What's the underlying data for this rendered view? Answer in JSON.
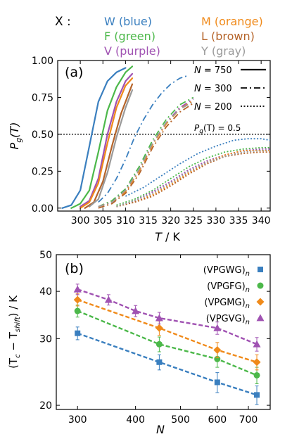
{
  "color_key": {
    "prefix": "X :",
    "items": [
      {
        "text": "W (blue)",
        "color": "#3a7fbf"
      },
      {
        "text": "M (orange)",
        "color": "#f08a1a"
      },
      {
        "text": "F (green)",
        "color": "#4cb84a"
      },
      {
        "text": "L (brown)",
        "color": "#b5642a"
      },
      {
        "text": "V (purple)",
        "color": "#a052b2"
      },
      {
        "text": "Y (gray)",
        "color": "#9a9a9a"
      }
    ]
  },
  "chart_data": [
    {
      "panel_label": "(a)",
      "type": "line",
      "xlabel_main": "T",
      "xlabel_unit": " / K",
      "ylabel_main": "P",
      "ylabel_sub": "g",
      "ylabel_arg": "(T)",
      "xlim": [
        295,
        342
      ],
      "ylim": [
        -0.02,
        1.0
      ],
      "xticks": [
        300,
        305,
        310,
        315,
        320,
        325,
        330,
        335,
        340
      ],
      "yticks": [
        0.0,
        0.25,
        0.5,
        0.75,
        1.0
      ],
      "ytick_labels": [
        "0.00",
        "0.25",
        "0.50",
        "0.75",
        "1.00"
      ],
      "reference_line": {
        "y": 0.5,
        "text_main": "P",
        "text_sub": "g",
        "text_rest": "(T) = 0.5"
      },
      "legend": {
        "placement": "top-right",
        "entries": [
          {
            "label_main": "N",
            "label_rest": " = 750",
            "style": "solid"
          },
          {
            "label_main": "N",
            "label_rest": " = 300",
            "style": "dashdot"
          },
          {
            "label_main": "N",
            "label_rest": " = 200",
            "style": "dotted"
          }
        ]
      },
      "series": [
        {
          "key": "W",
          "style": "solid",
          "color": "#3a7fbf",
          "x": [
            296,
            298,
            300,
            302,
            304,
            306,
            308,
            310
          ],
          "y": [
            0.0,
            0.02,
            0.12,
            0.42,
            0.72,
            0.86,
            0.92,
            0.95
          ]
        },
        {
          "key": "F",
          "style": "solid",
          "color": "#4cb84a",
          "x": [
            298,
            300,
            302,
            304,
            306,
            308,
            310,
            311.5
          ],
          "y": [
            0.0,
            0.03,
            0.12,
            0.38,
            0.66,
            0.82,
            0.92,
            0.96
          ]
        },
        {
          "key": "V",
          "style": "solid",
          "color": "#a052b2",
          "x": [
            300,
            302,
            304,
            306,
            308,
            310,
            311.5
          ],
          "y": [
            0.01,
            0.05,
            0.2,
            0.5,
            0.72,
            0.86,
            0.91
          ]
        },
        {
          "key": "M",
          "style": "solid",
          "color": "#f08a1a",
          "x": [
            300,
            302,
            304,
            306,
            308,
            310,
            311.5
          ],
          "y": [
            0.0,
            0.04,
            0.17,
            0.44,
            0.68,
            0.83,
            0.88
          ]
        },
        {
          "key": "L",
          "style": "solid",
          "color": "#b5642a",
          "x": [
            301,
            303,
            305,
            307,
            309,
            311.5
          ],
          "y": [
            0.0,
            0.04,
            0.18,
            0.42,
            0.64,
            0.84
          ]
        },
        {
          "key": "Y",
          "style": "solid",
          "color": "#9a9a9a",
          "x": [
            302,
            304,
            306,
            308,
            310,
            311.5
          ],
          "y": [
            0.01,
            0.06,
            0.24,
            0.48,
            0.68,
            0.8
          ]
        },
        {
          "key": "W",
          "style": "dashdot",
          "color": "#3a7fbf",
          "x": [
            304,
            306,
            308,
            310,
            312,
            314,
            316,
            318,
            320,
            322,
            324
          ],
          "y": [
            0.04,
            0.1,
            0.2,
            0.33,
            0.48,
            0.6,
            0.7,
            0.78,
            0.84,
            0.88,
            0.9
          ]
        },
        {
          "key": "F",
          "style": "dashdot",
          "color": "#4cb84a",
          "x": [
            304,
            307,
            310,
            313,
            316,
            319,
            322,
            325
          ],
          "y": [
            0.01,
            0.05,
            0.13,
            0.28,
            0.46,
            0.6,
            0.7,
            0.75
          ]
        },
        {
          "key": "V",
          "style": "dashdot",
          "color": "#a052b2",
          "x": [
            304,
            307,
            310,
            313,
            316,
            319,
            322,
            325
          ],
          "y": [
            0.01,
            0.04,
            0.12,
            0.26,
            0.44,
            0.58,
            0.68,
            0.74
          ]
        },
        {
          "key": "M",
          "style": "dashdot",
          "color": "#f08a1a",
          "x": [
            304,
            307,
            310,
            313,
            316,
            319,
            322,
            325
          ],
          "y": [
            0.01,
            0.04,
            0.11,
            0.25,
            0.43,
            0.57,
            0.67,
            0.73
          ]
        },
        {
          "key": "L",
          "style": "dashdot",
          "color": "#b5642a",
          "x": [
            304,
            307,
            310,
            313,
            316,
            319,
            322,
            325
          ],
          "y": [
            0.0,
            0.03,
            0.1,
            0.23,
            0.41,
            0.55,
            0.65,
            0.71
          ]
        },
        {
          "key": "Y",
          "style": "dashdot",
          "color": "#9a9a9a",
          "x": [
            304,
            307,
            310,
            313,
            316,
            319,
            322,
            325
          ],
          "y": [
            0.01,
            0.04,
            0.12,
            0.26,
            0.44,
            0.58,
            0.67,
            0.72
          ]
        },
        {
          "key": "W",
          "style": "dotted",
          "color": "#3a7fbf",
          "x": [
            310,
            314,
            318,
            322,
            326,
            330,
            334,
            337,
            340,
            342
          ],
          "y": [
            0.08,
            0.14,
            0.22,
            0.3,
            0.37,
            0.42,
            0.46,
            0.47,
            0.47,
            0.46
          ]
        },
        {
          "key": "F",
          "style": "dotted",
          "color": "#4cb84a",
          "x": [
            308,
            312,
            316,
            320,
            324,
            328,
            332,
            336,
            340,
            342
          ],
          "y": [
            0.02,
            0.06,
            0.12,
            0.2,
            0.28,
            0.34,
            0.38,
            0.4,
            0.41,
            0.41
          ]
        },
        {
          "key": "V",
          "style": "dotted",
          "color": "#a052b2",
          "x": [
            308,
            312,
            316,
            320,
            324,
            328,
            332,
            336,
            340,
            342
          ],
          "y": [
            0.01,
            0.05,
            0.11,
            0.18,
            0.26,
            0.32,
            0.36,
            0.39,
            0.4,
            0.4
          ]
        },
        {
          "key": "M",
          "style": "dotted",
          "color": "#f08a1a",
          "x": [
            308,
            312,
            316,
            320,
            324,
            328,
            332,
            336,
            340,
            342
          ],
          "y": [
            0.01,
            0.04,
            0.09,
            0.16,
            0.24,
            0.31,
            0.36,
            0.39,
            0.39,
            0.39
          ]
        },
        {
          "key": "L",
          "style": "dotted",
          "color": "#b5642a",
          "x": [
            308,
            312,
            316,
            320,
            324,
            328,
            332,
            336,
            340,
            342
          ],
          "y": [
            0.01,
            0.04,
            0.08,
            0.15,
            0.23,
            0.3,
            0.35,
            0.37,
            0.38,
            0.38
          ]
        },
        {
          "key": "Y",
          "style": "dotted",
          "color": "#9a9a9a",
          "x": [
            308,
            312,
            316,
            320,
            324,
            328,
            332,
            336,
            340,
            342
          ],
          "y": [
            0.01,
            0.05,
            0.1,
            0.17,
            0.25,
            0.31,
            0.35,
            0.38,
            0.39,
            0.39
          ]
        }
      ]
    },
    {
      "panel_label": "(b)",
      "type": "scatter",
      "xscale": "log",
      "yscale": "log",
      "xlabel": "N",
      "ylabel_pre": "(T",
      "ylabel_sub1": "c",
      "ylabel_mid": " − T",
      "ylabel_sub2": "shift",
      "ylabel_post": ") / K",
      "xlim": [
        270,
        780
      ],
      "ylim": [
        19.5,
        50
      ],
      "xticks": [
        300,
        400,
        500,
        600,
        700
      ],
      "yticks": [
        20,
        30,
        40,
        50
      ],
      "legend": {
        "placement": "top-right"
      },
      "series": [
        {
          "name_main": "(VPGWG)",
          "name_sub": "n",
          "marker": "square",
          "color": "#3a7fbf",
          "x": [
            300,
            450,
            600,
            730
          ],
          "y": [
            31,
            26,
            23,
            21.3
          ],
          "err": [
            1.2,
            1.2,
            1.4,
            1.2
          ]
        },
        {
          "name_main": "(VPGFG)",
          "name_sub": "n",
          "marker": "circle",
          "color": "#4cb84a",
          "x": [
            300,
            450,
            600,
            730
          ],
          "y": [
            35.5,
            29,
            26.5,
            24
          ],
          "err": [
            1.3,
            1.3,
            1.3,
            1.2
          ]
        },
        {
          "name_main": "(VPGMG)",
          "name_sub": "n",
          "marker": "diamond",
          "color": "#f08a1a",
          "x": [
            300,
            450,
            600,
            730
          ],
          "y": [
            38,
            32,
            28,
            26
          ],
          "err": [
            1.4,
            1.4,
            1.3,
            1.2
          ]
        },
        {
          "name_main": "(VPGVG)",
          "name_sub": "n",
          "marker": "triangle",
          "color": "#a052b2",
          "x": [
            300,
            350,
            400,
            450,
            600,
            730
          ],
          "y": [
            40.5,
            38,
            35.5,
            34,
            32,
            29
          ],
          "err": [
            1.3,
            1.2,
            1.2,
            1.2,
            1.2,
            1.2
          ]
        }
      ]
    }
  ]
}
